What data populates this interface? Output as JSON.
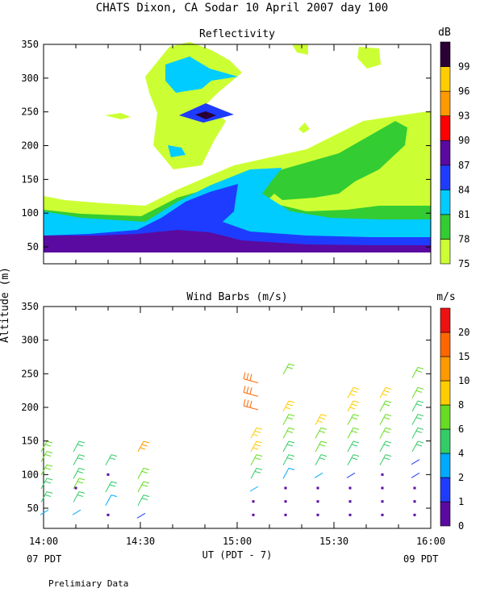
{
  "title": "CHATS Dixon, CA  Sodar  10 April 2007  day 100",
  "ylabel_shared": "Altitude (m)",
  "xlabel": "UT  (PDT - 7)",
  "x_corner_left": "07 PDT",
  "x_corner_right": "09 PDT",
  "footnote": "Prelimiary Data",
  "colors": {
    "reflectivity": [
      "#ccff33",
      "#33cc33",
      "#00ccff",
      "#1e3cff",
      "#5a0aa0",
      "#ff0000",
      "#ff9900",
      "#ffcc00",
      "#2a0035"
    ],
    "wind": [
      "#5a0aa0",
      "#1e3cff",
      "#00aaff",
      "#33cc66",
      "#66dd22",
      "#ffcc00",
      "#ff9900",
      "#ff6600",
      "#ee1111"
    ]
  },
  "chart_data": [
    {
      "type": "heatmap",
      "title": "Reflectivity",
      "ylim": [
        25,
        350
      ],
      "yticks": [
        "50",
        "100",
        "150",
        "200",
        "250",
        "300",
        "350"
      ],
      "xlim": [
        "14:00",
        "16:00"
      ],
      "colorbar": {
        "unit": "dB",
        "levels": [
          "75",
          "78",
          "81",
          "84",
          "87",
          "90",
          "93",
          "96",
          "99"
        ]
      },
      "grid": false
    },
    {
      "type": "scatter",
      "title": "Wind Barbs (m/s)",
      "ylim": [
        20,
        350
      ],
      "yticks": [
        "50",
        "100",
        "150",
        "200",
        "250",
        "300",
        "350"
      ],
      "xticks": [
        "14:00",
        "14:30",
        "15:00",
        "15:30",
        "16:00"
      ],
      "colorbar": {
        "unit": "m/s",
        "levels": [
          "0",
          "1",
          "2",
          "4",
          "6",
          "8",
          "10",
          "15",
          "20"
        ]
      },
      "barbs": [
        {
          "t": "14:00",
          "z": 45,
          "speed": 2
        },
        {
          "t": "14:00",
          "z": 65,
          "speed": 4
        },
        {
          "t": "14:00",
          "z": 85,
          "speed": 5
        },
        {
          "t": "14:00",
          "z": 105,
          "speed": 6
        },
        {
          "t": "14:00",
          "z": 125,
          "speed": 7
        },
        {
          "t": "14:00",
          "z": 140,
          "speed": 6
        },
        {
          "t": "14:10",
          "z": 45,
          "speed": 2
        },
        {
          "t": "14:10",
          "z": 65,
          "speed": 4
        },
        {
          "t": "14:10",
          "z": 85,
          "speed": 6
        },
        {
          "t": "14:10",
          "z": 100,
          "speed": 5
        },
        {
          "t": "14:10",
          "z": 120,
          "speed": 4
        },
        {
          "t": "14:10",
          "z": 140,
          "speed": 5
        },
        {
          "t": "14:20",
          "z": 60,
          "speed": 3
        },
        {
          "t": "14:20",
          "z": 80,
          "speed": 4
        },
        {
          "t": "14:20",
          "z": 120,
          "speed": 4
        },
        {
          "t": "14:30",
          "z": 40,
          "speed": 1
        },
        {
          "t": "14:30",
          "z": 60,
          "speed": 4
        },
        {
          "t": "14:30",
          "z": 80,
          "speed": 6
        },
        {
          "t": "14:30",
          "z": 100,
          "speed": 7
        },
        {
          "t": "14:30",
          "z": 140,
          "speed": 12
        },
        {
          "t": "15:05",
          "z": 80,
          "speed": 2
        },
        {
          "t": "15:05",
          "z": 100,
          "speed": 5
        },
        {
          "t": "15:05",
          "z": 120,
          "speed": 7
        },
        {
          "t": "15:05",
          "z": 140,
          "speed": 9
        },
        {
          "t": "15:05",
          "z": 160,
          "speed": 9
        },
        {
          "t": "15:05",
          "z": 200,
          "speed": 17
        },
        {
          "t": "15:05",
          "z": 220,
          "speed": 18
        },
        {
          "t": "15:05",
          "z": 240,
          "speed": 19
        },
        {
          "t": "15:15",
          "z": 100,
          "speed": 3
        },
        {
          "t": "15:15",
          "z": 120,
          "speed": 4
        },
        {
          "t": "15:15",
          "z": 140,
          "speed": 5
        },
        {
          "t": "15:15",
          "z": 160,
          "speed": 6
        },
        {
          "t": "15:15",
          "z": 180,
          "speed": 7
        },
        {
          "t": "15:15",
          "z": 200,
          "speed": 8
        },
        {
          "t": "15:15",
          "z": 255,
          "speed": 6
        },
        {
          "t": "15:25",
          "z": 100,
          "speed": 2
        },
        {
          "t": "15:25",
          "z": 120,
          "speed": 4
        },
        {
          "t": "15:25",
          "z": 140,
          "speed": 6
        },
        {
          "t": "15:25",
          "z": 160,
          "speed": 7
        },
        {
          "t": "15:25",
          "z": 180,
          "speed": 8
        },
        {
          "t": "15:35",
          "z": 100,
          "speed": 1
        },
        {
          "t": "15:35",
          "z": 120,
          "speed": 4
        },
        {
          "t": "15:35",
          "z": 140,
          "speed": 5
        },
        {
          "t": "15:35",
          "z": 160,
          "speed": 6
        },
        {
          "t": "15:35",
          "z": 180,
          "speed": 7
        },
        {
          "t": "15:35",
          "z": 200,
          "speed": 8
        },
        {
          "t": "15:35",
          "z": 220,
          "speed": 9
        },
        {
          "t": "15:45",
          "z": 120,
          "speed": 4
        },
        {
          "t": "15:45",
          "z": 140,
          "speed": 5
        },
        {
          "t": "15:45",
          "z": 160,
          "speed": 6
        },
        {
          "t": "15:45",
          "z": 180,
          "speed": 6
        },
        {
          "t": "15:45",
          "z": 200,
          "speed": 7
        },
        {
          "t": "15:45",
          "z": 220,
          "speed": 8
        },
        {
          "t": "15:55",
          "z": 100,
          "speed": 1
        },
        {
          "t": "15:55",
          "z": 120,
          "speed": 1
        },
        {
          "t": "15:55",
          "z": 140,
          "speed": 4
        },
        {
          "t": "15:55",
          "z": 160,
          "speed": 4
        },
        {
          "t": "15:55",
          "z": 180,
          "speed": 5
        },
        {
          "t": "15:55",
          "z": 200,
          "speed": 5
        },
        {
          "t": "15:55",
          "z": 220,
          "speed": 6
        },
        {
          "t": "15:55",
          "z": 250,
          "speed": 6
        }
      ],
      "calm_points": [
        {
          "t": "14:10",
          "z": 80
        },
        {
          "t": "14:20",
          "z": 100
        },
        {
          "t": "14:20",
          "z": 40
        },
        {
          "t": "15:05",
          "z": 40
        },
        {
          "t": "15:05",
          "z": 60
        },
        {
          "t": "15:15",
          "z": 40
        },
        {
          "t": "15:15",
          "z": 60
        },
        {
          "t": "15:15",
          "z": 80
        },
        {
          "t": "15:25",
          "z": 40
        },
        {
          "t": "15:25",
          "z": 60
        },
        {
          "t": "15:25",
          "z": 80
        },
        {
          "t": "15:35",
          "z": 40
        },
        {
          "t": "15:35",
          "z": 60
        },
        {
          "t": "15:35",
          "z": 80
        },
        {
          "t": "15:45",
          "z": 40
        },
        {
          "t": "15:45",
          "z": 60
        },
        {
          "t": "15:45",
          "z": 80
        },
        {
          "t": "15:45",
          "z": 100
        },
        {
          "t": "15:55",
          "z": 40
        },
        {
          "t": "15:55",
          "z": 60
        },
        {
          "t": "15:55",
          "z": 80
        }
      ]
    }
  ]
}
